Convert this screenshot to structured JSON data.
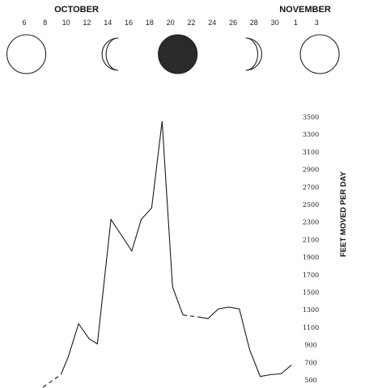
{
  "chart_data": {
    "type": "line",
    "title": "",
    "xlabel": "",
    "ylabel": "FEET MOVED PER DAY",
    "months": [
      {
        "name": "OCTOBER",
        "day": 11
      },
      {
        "name": "NOVEMBER",
        "day": 32.9
      }
    ],
    "x_ticks": [
      {
        "day": 6,
        "label": "6"
      },
      {
        "day": 8,
        "label": "8"
      },
      {
        "day": 10,
        "label": "10"
      },
      {
        "day": 12,
        "label": "12"
      },
      {
        "day": 14,
        "label": "14"
      },
      {
        "day": 16,
        "label": "16"
      },
      {
        "day": 18,
        "label": "18"
      },
      {
        "day": 20,
        "label": "20"
      },
      {
        "day": 22,
        "label": "22"
      },
      {
        "day": 24,
        "label": "24"
      },
      {
        "day": 26,
        "label": "26"
      },
      {
        "day": 28,
        "label": "28"
      },
      {
        "day": 30,
        "label": "30"
      },
      {
        "day": 32,
        "label": "1"
      },
      {
        "day": 34,
        "label": "3"
      }
    ],
    "y_ticks": [
      500,
      700,
      900,
      1100,
      1300,
      1500,
      1700,
      1900,
      2100,
      2300,
      2500,
      2700,
      2900,
      3100,
      3300,
      3500
    ],
    "ylim": [
      500,
      3500
    ],
    "xlim": [
      5,
      37
    ],
    "moon_phases": [
      {
        "day": 6.2,
        "phase": "full"
      },
      {
        "day": 15,
        "phase": "last-quarter"
      },
      {
        "day": 20.7,
        "phase": "new"
      },
      {
        "day": 27.2,
        "phase": "first-quarter"
      },
      {
        "day": 34.3,
        "phase": "full"
      }
    ],
    "series": [
      {
        "segments": [
          {
            "style": "dashed",
            "points": [
              [
                7.8,
                230
              ],
              [
                9.5,
                560
              ]
            ]
          },
          {
            "style": "solid",
            "points": [
              [
                9.5,
                560
              ],
              [
                10.2,
                760
              ],
              [
                11.2,
                1140
              ],
              [
                12.2,
                970
              ],
              [
                13.0,
                910
              ],
              [
                14.3,
                2330
              ],
              [
                16.3,
                1970
              ],
              [
                17.2,
                2330
              ],
              [
                18.2,
                2460
              ],
              [
                19.2,
                3450
              ],
              [
                20.2,
                1560
              ],
              [
                21.2,
                1240
              ]
            ]
          },
          {
            "style": "dashed",
            "points": [
              [
                21.2,
                1240
              ],
              [
                22.6,
                1220
              ]
            ]
          },
          {
            "style": "solid",
            "points": [
              [
                22.6,
                1220
              ],
              [
                23.6,
                1200
              ],
              [
                24.6,
                1310
              ],
              [
                25.6,
                1330
              ],
              [
                26.6,
                1310
              ],
              [
                27.6,
                840
              ],
              [
                28.6,
                540
              ],
              [
                29.6,
                560
              ],
              [
                30.6,
                570
              ],
              [
                31.6,
                670
              ]
            ]
          }
        ]
      }
    ]
  }
}
